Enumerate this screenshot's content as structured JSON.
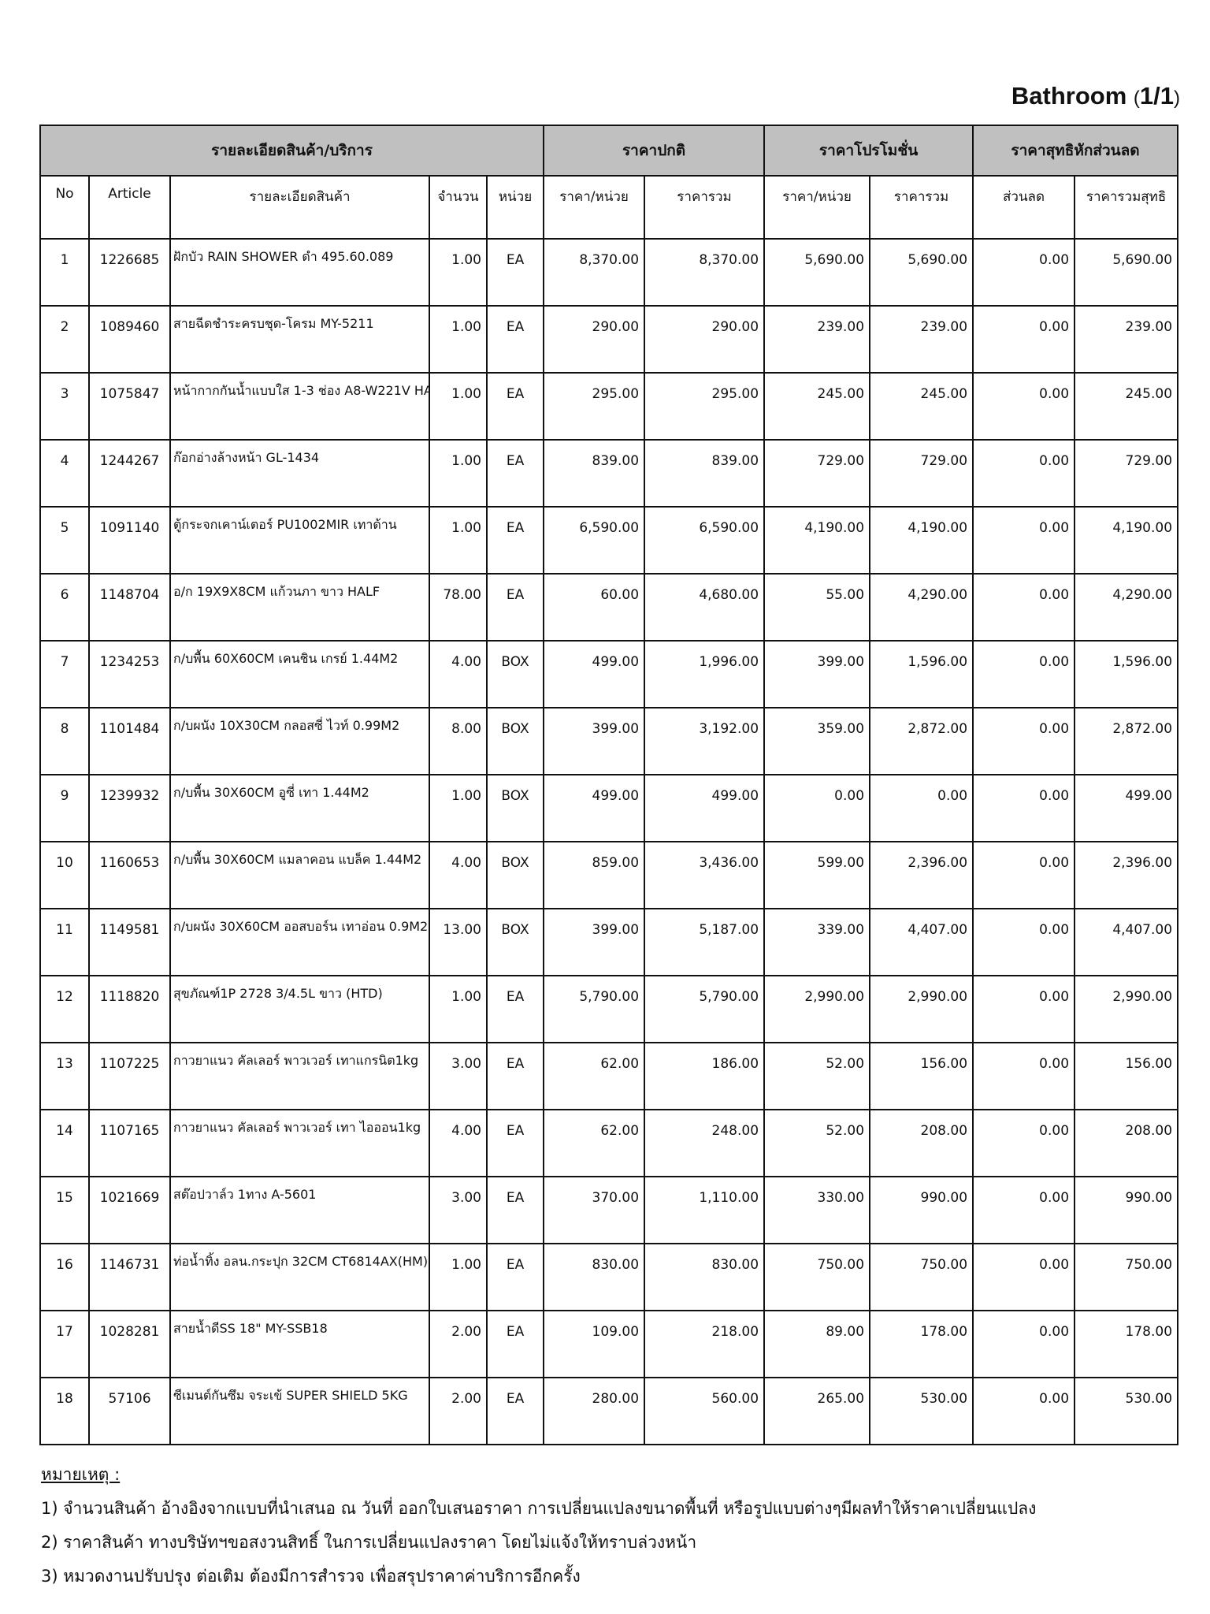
{
  "title": {
    "text": "Bathroom",
    "page": "1/1"
  },
  "table": {
    "group_headers": [
      "รายละเอียดสินค้า/บริการ",
      "ราคาปกติ",
      "ราคาโปรโมชั่น",
      "ราคาสุทธิหักส่วนลด"
    ],
    "columns": [
      "No",
      "Article",
      "รายละเอียดสินค้า",
      "จำนวน",
      "หน่วย",
      "ราคา/หน่วย",
      "ราคารวม",
      "ราคา/หน่วย",
      "ราคารวม",
      "ส่วนลด",
      "ราคารวมสุทธิ"
    ],
    "rows": [
      [
        "1",
        "1226685",
        "ฝักบัว RAIN SHOWER ดำ 495.60.089",
        "1.00",
        "EA",
        "8,370.00",
        "8,370.00",
        "5,690.00",
        "5,690.00",
        "0.00",
        "5,690.00"
      ],
      [
        "2",
        "1089460",
        "สายฉีดชำระครบชุด-โครม MY-5211",
        "1.00",
        "EA",
        "290.00",
        "290.00",
        "239.00",
        "239.00",
        "0.00",
        "239.00"
      ],
      [
        "3",
        "1075847",
        "หน้ากากกันน้ำแบบใส 1-3 ช่อง A8-W221V HA",
        "1.00",
        "EA",
        "295.00",
        "295.00",
        "245.00",
        "245.00",
        "0.00",
        "245.00"
      ],
      [
        "4",
        "1244267",
        "ก๊อกอ่างล้างหน้า GL-1434",
        "1.00",
        "EA",
        "839.00",
        "839.00",
        "729.00",
        "729.00",
        "0.00",
        "729.00"
      ],
      [
        "5",
        "1091140",
        "ตู้กระจกเคาน์เตอร์ PU1002MIR เทาด้าน",
        "1.00",
        "EA",
        "6,590.00",
        "6,590.00",
        "4,190.00",
        "4,190.00",
        "0.00",
        "4,190.00"
      ],
      [
        "6",
        "1148704",
        "อ/ก 19X9X8CM แก้วนภา ขาว HALF",
        "78.00",
        "EA",
        "60.00",
        "4,680.00",
        "55.00",
        "4,290.00",
        "0.00",
        "4,290.00"
      ],
      [
        "7",
        "1234253",
        "ก/บพื้น 60X60CM เคนชิน เกรย์ 1.44M2",
        "4.00",
        "BOX",
        "499.00",
        "1,996.00",
        "399.00",
        "1,596.00",
        "0.00",
        "1,596.00"
      ],
      [
        "8",
        "1101484",
        "ก/บผนัง 10X30CM กลอสซี่ ไวท์ 0.99M2",
        "8.00",
        "BOX",
        "399.00",
        "3,192.00",
        "359.00",
        "2,872.00",
        "0.00",
        "2,872.00"
      ],
      [
        "9",
        "1239932",
        "ก/บพื้น 30X60CM อูซี่ เทา 1.44M2",
        "1.00",
        "BOX",
        "499.00",
        "499.00",
        "0.00",
        "0.00",
        "0.00",
        "499.00"
      ],
      [
        "10",
        "1160653",
        "ก/บพื้น 30X60CM แมลาคอน แบล็ค 1.44M2",
        "4.00",
        "BOX",
        "859.00",
        "3,436.00",
        "599.00",
        "2,396.00",
        "0.00",
        "2,396.00"
      ],
      [
        "11",
        "1149581",
        "ก/บผนัง 30X60CM ออสบอร์น เทาอ่อน 0.9M2",
        "13.00",
        "BOX",
        "399.00",
        "5,187.00",
        "339.00",
        "4,407.00",
        "0.00",
        "4,407.00"
      ],
      [
        "12",
        "1118820",
        "สุขภัณฑ์1P 2728 3/4.5L ขาว (HTD)",
        "1.00",
        "EA",
        "5,790.00",
        "5,790.00",
        "2,990.00",
        "2,990.00",
        "0.00",
        "2,990.00"
      ],
      [
        "13",
        "1107225",
        "กาวยาแนว คัลเลอร์ พาวเวอร์ เทาแกรนิต1kg",
        "3.00",
        "EA",
        "62.00",
        "186.00",
        "52.00",
        "156.00",
        "0.00",
        "156.00"
      ],
      [
        "14",
        "1107165",
        "กาวยาแนว คัลเลอร์ พาวเวอร์ เทา ไอออน1kg",
        "4.00",
        "EA",
        "62.00",
        "248.00",
        "52.00",
        "208.00",
        "0.00",
        "208.00"
      ],
      [
        "15",
        "1021669",
        "สต๊อปวาล์ว 1ทาง A-5601",
        "3.00",
        "EA",
        "370.00",
        "1,110.00",
        "330.00",
        "990.00",
        "0.00",
        "990.00"
      ],
      [
        "16",
        "1146731",
        "ท่อน้ำทิ้ง อลน.กระปุก 32CM CT6814AX(HM)",
        "1.00",
        "EA",
        "830.00",
        "830.00",
        "750.00",
        "750.00",
        "0.00",
        "750.00"
      ],
      [
        "17",
        "1028281",
        "สายน้ำดีSS 18\" MY-SSB18",
        "2.00",
        "EA",
        "109.00",
        "218.00",
        "89.00",
        "178.00",
        "0.00",
        "178.00"
      ],
      [
        "18",
        "57106",
        "ซีเมนต์กันซึม จระเข้ SUPER SHIELD 5KG",
        "2.00",
        "EA",
        "280.00",
        "560.00",
        "265.00",
        "530.00",
        "0.00",
        "530.00"
      ]
    ]
  },
  "notes": {
    "heading": "หมายเหตุ :",
    "items": [
      "1) จำนวนสินค้า อ้างอิงจากแบบที่นำเสนอ ณ วันที่ ออกใบเสนอราคา การเปลี่ยนแปลงขนาดพื้นที่ หรือรูปแบบต่างๆมีผลทำให้ราคาเปลี่ยนแปลง",
      "2) ราคาสินค้า ทางบริษัทฯขอสงวนสิทธิ์ ในการเปลี่ยนแปลงราคา โดยไม่แจ้งให้ทราบล่วงหน้า",
      "3) หมวดงานปรับปรุง ต่อเติม ต้องมีการสำรวจ เพื่อสรุปราคาค่าบริการอีกครั้ง"
    ]
  }
}
